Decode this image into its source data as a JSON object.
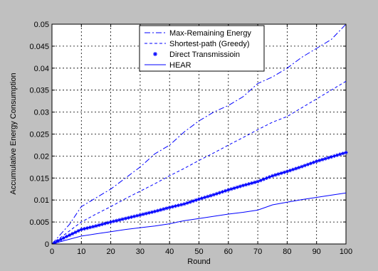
{
  "chart_data": {
    "type": "line",
    "title": "",
    "xlabel": "Round",
    "ylabel": "Accumulative Energy Consumption",
    "xlim": [
      0,
      100
    ],
    "ylim": [
      0,
      0.05
    ],
    "x_ticks": [
      "0",
      "10",
      "20",
      "30",
      "40",
      "50",
      "60",
      "70",
      "80",
      "90",
      "100"
    ],
    "y_ticks": [
      "0",
      "0.005",
      "0.01",
      "0.015",
      "0.02",
      "0.025",
      "0.03",
      "0.035",
      "0.04",
      "0.045",
      "0.05"
    ],
    "grid": true,
    "legend_position": "top-center",
    "series": [
      {
        "name": "Max-Remaining Energy",
        "style": "dashdot",
        "color": "#0000ff",
        "x": [
          0,
          2,
          4,
          6,
          8,
          10,
          15,
          20,
          25,
          30,
          35,
          40,
          45,
          50,
          55,
          60,
          65,
          70,
          75,
          80,
          85,
          90,
          95,
          100
        ],
        "y": [
          0,
          0.0015,
          0.003,
          0.0045,
          0.0065,
          0.0085,
          0.0105,
          0.0125,
          0.015,
          0.0175,
          0.0205,
          0.0225,
          0.0255,
          0.028,
          0.03,
          0.0315,
          0.0335,
          0.0365,
          0.038,
          0.04,
          0.0425,
          0.0445,
          0.0465,
          0.05
        ]
      },
      {
        "name": "Shortest-path (Greedy)",
        "style": "dashed",
        "color": "#0000ff",
        "x": [
          0,
          5,
          10,
          15,
          20,
          25,
          30,
          35,
          40,
          45,
          50,
          55,
          60,
          65,
          70,
          75,
          80,
          85,
          90,
          95,
          100
        ],
        "y": [
          0,
          0.0025,
          0.005,
          0.0068,
          0.0085,
          0.0103,
          0.012,
          0.0137,
          0.0155,
          0.0172,
          0.019,
          0.0207,
          0.0225,
          0.0242,
          0.026,
          0.0277,
          0.029,
          0.031,
          0.033,
          0.035,
          0.037
        ]
      },
      {
        "name": "Direct Transmissioin",
        "style": "star",
        "color": "#0000ff",
        "x": [
          0,
          5,
          10,
          15,
          20,
          25,
          30,
          35,
          40,
          45,
          50,
          55,
          60,
          65,
          70,
          75,
          80,
          85,
          90,
          95,
          100
        ],
        "y": [
          0,
          0.0017,
          0.0033,
          0.0041,
          0.005,
          0.0058,
          0.0066,
          0.0074,
          0.0083,
          0.0091,
          0.0102,
          0.0112,
          0.0123,
          0.0133,
          0.0142,
          0.0155,
          0.0165,
          0.0176,
          0.0188,
          0.0198,
          0.0208
        ]
      },
      {
        "name": "HEAR",
        "style": "solid",
        "color": "#0000ff",
        "x": [
          0,
          5,
          10,
          15,
          20,
          25,
          30,
          35,
          40,
          45,
          50,
          55,
          60,
          65,
          70,
          75,
          80,
          85,
          90,
          95,
          100
        ],
        "y": [
          0,
          0.0009,
          0.0018,
          0.0023,
          0.0028,
          0.0033,
          0.0037,
          0.0041,
          0.0046,
          0.0053,
          0.0058,
          0.0063,
          0.0068,
          0.0072,
          0.0077,
          0.0089,
          0.0095,
          0.0101,
          0.0106,
          0.0111,
          0.0116
        ]
      }
    ]
  }
}
